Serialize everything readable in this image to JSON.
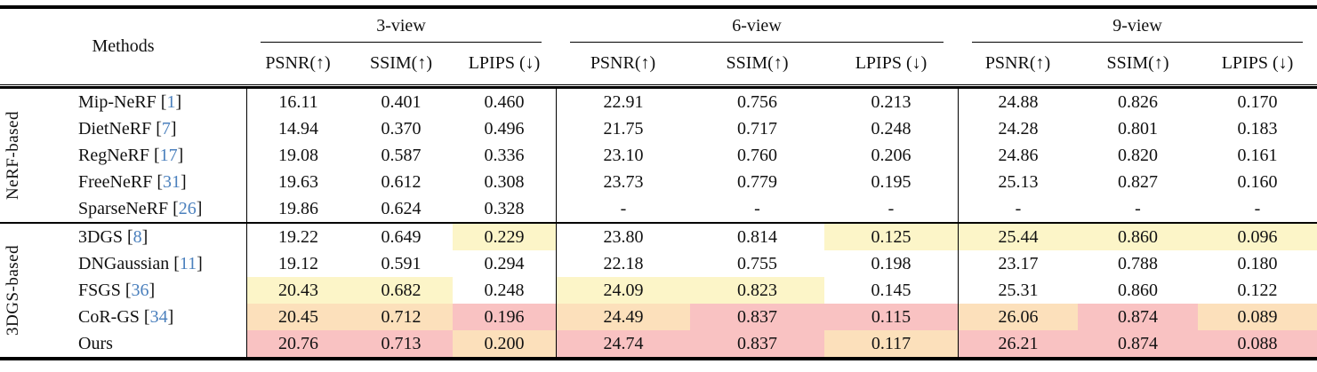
{
  "table": {
    "methods_label": "Methods",
    "view_groups": [
      {
        "label": "3-view"
      },
      {
        "label": "6-view"
      },
      {
        "label": "9-view"
      }
    ],
    "metric_headers": [
      "PSNR(↑)",
      "SSIM(↑)",
      "LPIPS (↓)"
    ],
    "highlight_colors": {
      "first": "#f9c2c2",
      "second": "#fce0bb",
      "third": "#fcf5c8"
    },
    "citation_color": "#4b80bd",
    "sections": [
      {
        "group": "NeRF-based",
        "rows": [
          {
            "method": "Mip-NeRF",
            "cite": "1",
            "values": [
              "16.11",
              "0.401",
              "0.460",
              "22.91",
              "0.756",
              "0.213",
              "24.88",
              "0.826",
              "0.170"
            ],
            "highlights": [
              null,
              null,
              null,
              null,
              null,
              null,
              null,
              null,
              null
            ]
          },
          {
            "method": "DietNeRF",
            "cite": "7",
            "values": [
              "14.94",
              "0.370",
              "0.496",
              "21.75",
              "0.717",
              "0.248",
              "24.28",
              "0.801",
              "0.183"
            ],
            "highlights": [
              null,
              null,
              null,
              null,
              null,
              null,
              null,
              null,
              null
            ]
          },
          {
            "method": "RegNeRF",
            "cite": "17",
            "values": [
              "19.08",
              "0.587",
              "0.336",
              "23.10",
              "0.760",
              "0.206",
              "24.86",
              "0.820",
              "0.161"
            ],
            "highlights": [
              null,
              null,
              null,
              null,
              null,
              null,
              null,
              null,
              null
            ]
          },
          {
            "method": "FreeNeRF",
            "cite": "31",
            "values": [
              "19.63",
              "0.612",
              "0.308",
              "23.73",
              "0.779",
              "0.195",
              "25.13",
              "0.827",
              "0.160"
            ],
            "highlights": [
              null,
              null,
              null,
              null,
              null,
              null,
              null,
              null,
              null
            ]
          },
          {
            "method": "SparseNeRF",
            "cite": "26",
            "values": [
              "19.86",
              "0.624",
              "0.328",
              "-",
              "-",
              "-",
              "-",
              "-",
              "-"
            ],
            "highlights": [
              null,
              null,
              null,
              null,
              null,
              null,
              null,
              null,
              null
            ]
          }
        ]
      },
      {
        "group": "3DGS-based",
        "rows": [
          {
            "method": "3DGS",
            "cite": "8",
            "values": [
              "19.22",
              "0.649",
              "0.229",
              "23.80",
              "0.814",
              "0.125",
              "25.44",
              "0.860",
              "0.096"
            ],
            "highlights": [
              null,
              null,
              "third",
              null,
              null,
              "third",
              "third",
              "third",
              "third"
            ]
          },
          {
            "method": "DNGaussian",
            "cite": "11",
            "values": [
              "19.12",
              "0.591",
              "0.294",
              "22.18",
              "0.755",
              "0.198",
              "23.17",
              "0.788",
              "0.180"
            ],
            "highlights": [
              null,
              null,
              null,
              null,
              null,
              null,
              null,
              null,
              null
            ]
          },
          {
            "method": "FSGS",
            "cite": "36",
            "values": [
              "20.43",
              "0.682",
              "0.248",
              "24.09",
              "0.823",
              "0.145",
              "25.31",
              "0.860",
              "0.122"
            ],
            "highlights": [
              "third",
              "third",
              null,
              "third",
              "third",
              null,
              null,
              null,
              null
            ]
          },
          {
            "method": "CoR-GS",
            "cite": "34",
            "values": [
              "20.45",
              "0.712",
              "0.196",
              "24.49",
              "0.837",
              "0.115",
              "26.06",
              "0.874",
              "0.089"
            ],
            "highlights": [
              "second",
              "second",
              "first",
              "second",
              "first",
              "first",
              "second",
              "first",
              "second"
            ]
          },
          {
            "method": "Ours",
            "cite": null,
            "values": [
              "20.76",
              "0.713",
              "0.200",
              "24.74",
              "0.837",
              "0.117",
              "26.21",
              "0.874",
              "0.088"
            ],
            "highlights": [
              "first",
              "first",
              "second",
              "first",
              "first",
              "second",
              "first",
              "first",
              "first"
            ]
          }
        ]
      }
    ]
  }
}
